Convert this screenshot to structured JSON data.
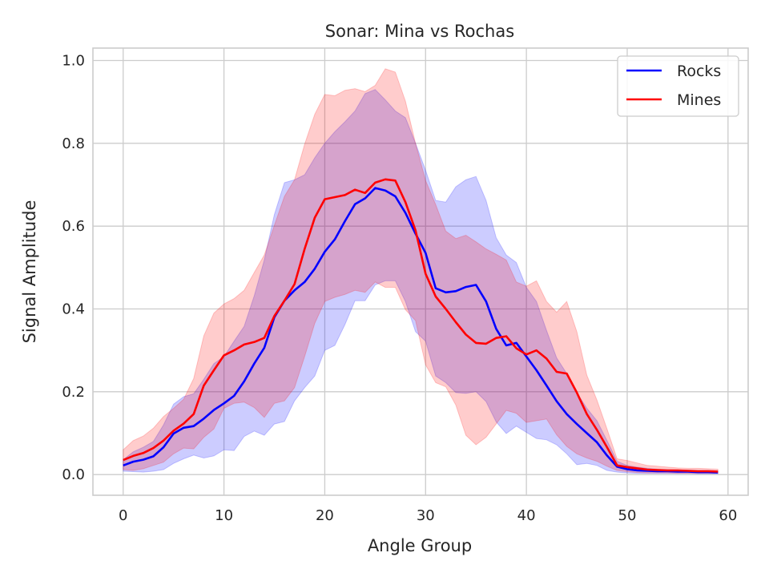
{
  "chart_data": {
    "type": "line",
    "title": "Sonar: Mina vs Rochas",
    "xlabel": "Angle Group",
    "ylabel": "Signal Amplitude",
    "xlim": [
      -3,
      62
    ],
    "ylim": [
      -0.05,
      1.03
    ],
    "xticks": [
      0,
      10,
      20,
      30,
      40,
      50,
      60
    ],
    "yticks": [
      0.0,
      0.2,
      0.4,
      0.6,
      0.8,
      1.0
    ],
    "xtick_labels": [
      "0",
      "10",
      "20",
      "30",
      "40",
      "50",
      "60"
    ],
    "ytick_labels": [
      "0.0",
      "0.2",
      "0.4",
      "0.6",
      "0.8",
      "1.0"
    ],
    "grid": true,
    "legend_position": "top-right",
    "x": [
      0,
      1,
      2,
      3,
      4,
      5,
      6,
      7,
      8,
      9,
      10,
      11,
      12,
      13,
      14,
      15,
      16,
      17,
      18,
      19,
      20,
      21,
      22,
      23,
      24,
      25,
      26,
      27,
      28,
      29,
      30,
      31,
      32,
      33,
      34,
      35,
      36,
      37,
      38,
      39,
      40,
      41,
      42,
      43,
      44,
      45,
      46,
      47,
      48,
      49,
      50,
      51,
      52,
      53,
      54,
      55,
      56,
      57,
      58,
      59
    ],
    "series": [
      {
        "name": "Rocks",
        "color": "#0000ff",
        "band_color": "#0000ff",
        "values": [
          0.022,
          0.031,
          0.036,
          0.044,
          0.066,
          0.099,
          0.113,
          0.117,
          0.135,
          0.156,
          0.172,
          0.19,
          0.225,
          0.268,
          0.306,
          0.38,
          0.42,
          0.445,
          0.465,
          0.497,
          0.538,
          0.568,
          0.612,
          0.653,
          0.667,
          0.692,
          0.686,
          0.672,
          0.632,
          0.582,
          0.535,
          0.45,
          0.44,
          0.443,
          0.453,
          0.458,
          0.418,
          0.352,
          0.312,
          0.318,
          0.285,
          0.252,
          0.215,
          0.177,
          0.146,
          0.122,
          0.1,
          0.078,
          0.046,
          0.019,
          0.013,
          0.01,
          0.009,
          0.008,
          0.008,
          0.007,
          0.007,
          0.006,
          0.006,
          0.005
        ],
        "lower": [
          0.008,
          0.007,
          0.006,
          0.008,
          0.012,
          0.027,
          0.038,
          0.047,
          0.04,
          0.045,
          0.06,
          0.058,
          0.092,
          0.105,
          0.095,
          0.122,
          0.128,
          0.178,
          0.21,
          0.238,
          0.3,
          0.312,
          0.362,
          0.42,
          0.42,
          0.458,
          0.468,
          0.468,
          0.418,
          0.345,
          0.322,
          0.238,
          0.222,
          0.198,
          0.196,
          0.2,
          0.176,
          0.127,
          0.099,
          0.117,
          0.102,
          0.087,
          0.084,
          0.072,
          0.05,
          0.024,
          0.027,
          0.022,
          0.01,
          0.006,
          0.004,
          0.003,
          0.003,
          0.003,
          0.003,
          0.003,
          0.003,
          0.002,
          0.002,
          0.002
        ],
        "upper": [
          0.036,
          0.055,
          0.066,
          0.08,
          0.12,
          0.17,
          0.188,
          0.195,
          0.23,
          0.268,
          0.285,
          0.322,
          0.358,
          0.432,
          0.518,
          0.628,
          0.705,
          0.712,
          0.724,
          0.765,
          0.8,
          0.828,
          0.852,
          0.878,
          0.92,
          0.93,
          0.905,
          0.878,
          0.862,
          0.8,
          0.735,
          0.662,
          0.658,
          0.695,
          0.712,
          0.72,
          0.662,
          0.572,
          0.53,
          0.512,
          0.452,
          0.418,
          0.348,
          0.282,
          0.244,
          0.198,
          0.16,
          0.13,
          0.082,
          0.032,
          0.022,
          0.018,
          0.015,
          0.013,
          0.012,
          0.011,
          0.011,
          0.01,
          0.01,
          0.009
        ]
      },
      {
        "name": "Mines",
        "color": "#ff0000",
        "band_color": "#ff0000",
        "values": [
          0.035,
          0.045,
          0.052,
          0.064,
          0.082,
          0.106,
          0.123,
          0.146,
          0.215,
          0.252,
          0.288,
          0.3,
          0.314,
          0.32,
          0.33,
          0.383,
          0.42,
          0.46,
          0.545,
          0.62,
          0.665,
          0.67,
          0.675,
          0.688,
          0.68,
          0.705,
          0.713,
          0.71,
          0.658,
          0.59,
          0.485,
          0.43,
          0.4,
          0.368,
          0.338,
          0.318,
          0.316,
          0.33,
          0.334,
          0.305,
          0.29,
          0.3,
          0.28,
          0.248,
          0.244,
          0.198,
          0.146,
          0.108,
          0.066,
          0.022,
          0.018,
          0.015,
          0.012,
          0.011,
          0.01,
          0.01,
          0.009,
          0.008,
          0.008,
          0.007
        ],
        "lower": [
          0.012,
          0.01,
          0.014,
          0.022,
          0.03,
          0.05,
          0.064,
          0.062,
          0.09,
          0.11,
          0.16,
          0.172,
          0.175,
          0.162,
          0.138,
          0.172,
          0.178,
          0.21,
          0.285,
          0.365,
          0.418,
          0.428,
          0.435,
          0.445,
          0.44,
          0.465,
          0.452,
          0.452,
          0.398,
          0.372,
          0.265,
          0.222,
          0.212,
          0.168,
          0.095,
          0.072,
          0.09,
          0.122,
          0.155,
          0.148,
          0.126,
          0.13,
          0.134,
          0.096,
          0.068,
          0.05,
          0.04,
          0.032,
          0.02,
          0.01,
          0.007,
          0.005,
          0.004,
          0.004,
          0.004,
          0.003,
          0.003,
          0.003,
          0.003,
          0.003
        ],
        "upper": [
          0.06,
          0.082,
          0.093,
          0.112,
          0.14,
          0.16,
          0.182,
          0.232,
          0.335,
          0.39,
          0.412,
          0.425,
          0.445,
          0.488,
          0.53,
          0.602,
          0.672,
          0.712,
          0.798,
          0.87,
          0.918,
          0.915,
          0.928,
          0.932,
          0.925,
          0.94,
          0.98,
          0.972,
          0.902,
          0.8,
          0.71,
          0.652,
          0.588,
          0.57,
          0.578,
          0.562,
          0.545,
          0.532,
          0.518,
          0.465,
          0.455,
          0.468,
          0.418,
          0.392,
          0.418,
          0.345,
          0.24,
          0.18,
          0.11,
          0.038,
          0.034,
          0.028,
          0.022,
          0.02,
          0.018,
          0.016,
          0.015,
          0.015,
          0.014,
          0.013
        ]
      }
    ]
  }
}
